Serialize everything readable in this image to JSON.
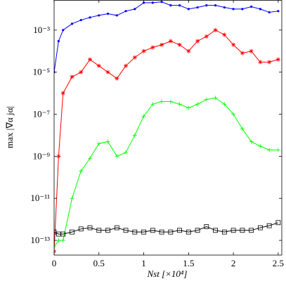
{
  "chart_data": {
    "type": "line",
    "log_y": true,
    "xlabel": "Nst [×10⁴]",
    "ylabel": "max |∇α jα|",
    "x": [
      0,
      0.05,
      0.1,
      0.2,
      0.3,
      0.4,
      0.5,
      0.6,
      0.7,
      0.8,
      0.9,
      1.0,
      1.1,
      1.2,
      1.3,
      1.4,
      1.5,
      1.6,
      1.7,
      1.8,
      1.9,
      2.0,
      2.1,
      2.2,
      2.3,
      2.4,
      2.5
    ],
    "xlim": [
      0,
      2.54
    ],
    "xticks": [
      0,
      0.5,
      1,
      1.5,
      2,
      2.5
    ],
    "ylim": [
      2e-14,
      0.027
    ],
    "yticks": [
      {
        "value": 1e-13,
        "label": "10⁻¹³"
      },
      {
        "value": 1e-11,
        "label": "10⁻¹¹"
      },
      {
        "value": 1e-09,
        "label": "10⁻⁹"
      },
      {
        "value": 1e-07,
        "label": "10⁻⁷"
      },
      {
        "value": 1e-05,
        "label": "10⁻⁵"
      },
      {
        "value": 0.001,
        "label": "10⁻³"
      }
    ],
    "series": [
      {
        "color": "#0000ff",
        "marker": "dot",
        "values": [
          1e-05,
          0.0003,
          0.001,
          0.002,
          0.003,
          0.004,
          0.005,
          0.006,
          0.005,
          0.008,
          0.01,
          0.02,
          0.02,
          0.022,
          0.015,
          0.015,
          0.01,
          0.012,
          0.015,
          0.015,
          0.012,
          0.01,
          0.01,
          0.013,
          0.01,
          0.007,
          0.008
        ]
      },
      {
        "color": "#ff0000",
        "marker": "star",
        "values": [
          3e-14,
          1e-09,
          1e-06,
          6e-06,
          1e-05,
          4e-05,
          2e-05,
          1e-05,
          5e-06,
          2e-05,
          5e-05,
          0.0001,
          0.00015,
          0.0002,
          0.0003,
          0.0002,
          0.0001,
          0.0003,
          0.0005,
          0.001,
          0.0006,
          0.0002,
          8e-05,
          0.0001,
          3e-05,
          3e-05,
          4e-05
        ]
      },
      {
        "color": "#00ff00",
        "marker": "plus",
        "values": [
          5e-14,
          1e-13,
          1e-13,
          1e-11,
          2e-10,
          8e-10,
          4e-09,
          5e-09,
          1e-09,
          1.5e-09,
          1e-08,
          8e-08,
          3e-07,
          4e-07,
          4e-07,
          3e-07,
          2e-07,
          3e-07,
          5e-07,
          6e-07,
          3e-07,
          1e-07,
          2e-08,
          5e-09,
          3e-09,
          2e-09,
          2e-09
        ]
      },
      {
        "color": "#000000",
        "marker": "square",
        "values": [
          2.5e-13,
          2e-13,
          2e-13,
          2.5e-13,
          3.5e-13,
          4e-13,
          3e-13,
          3e-13,
          4e-13,
          3e-13,
          2.5e-13,
          2.5e-13,
          3e-13,
          2.5e-13,
          2.5e-13,
          3e-13,
          2.5e-13,
          3e-13,
          4.5e-13,
          3e-13,
          2.5e-13,
          3e-13,
          3e-13,
          3e-13,
          4e-13,
          5e-13,
          7e-13
        ]
      }
    ]
  }
}
